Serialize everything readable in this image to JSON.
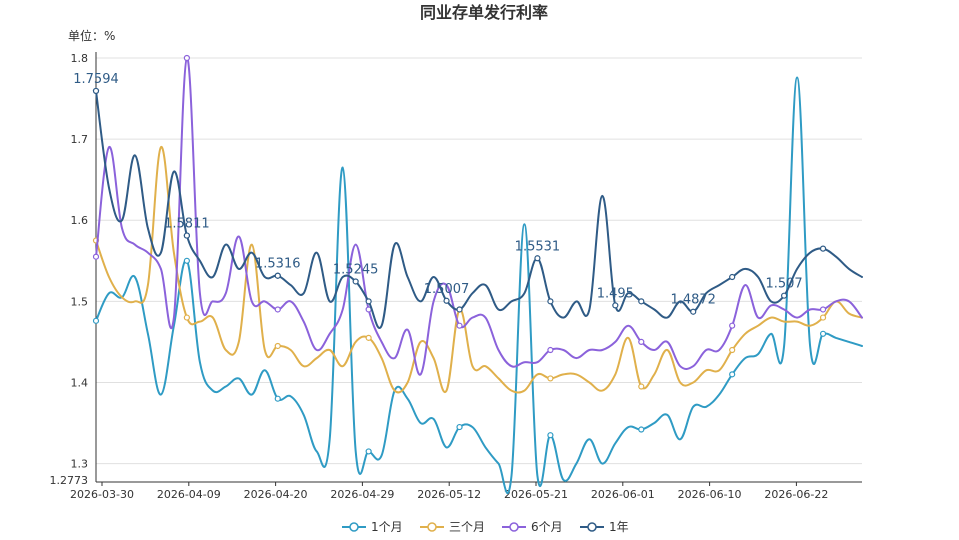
{
  "chart_data": {
    "type": "line",
    "title": "同业存单发行利率",
    "unit_label": "单位：%",
    "y_ticks": [
      "1.8",
      "1.7",
      "1.6",
      "1.5",
      "1.4",
      "1.3"
    ],
    "y_min_label": "1.2773",
    "ylim": [
      1.2773,
      1.8
    ],
    "x_ticks": [
      "2026-03-30",
      "2026-04-09",
      "2026-04-20",
      "2026-04-29",
      "2026-05-12",
      "2026-05-21",
      "2026-06-01",
      "2026-06-10",
      "2026-06-22"
    ],
    "grid": true,
    "legend_position": "bottom",
    "series": [
      {
        "name": "1个月",
        "color": "#2f9bc4",
        "values": [
          1.476,
          1.51,
          1.505,
          1.53,
          1.46,
          1.385,
          1.47,
          1.55,
          1.425,
          1.39,
          1.395,
          1.405,
          1.385,
          1.415,
          1.38,
          1.383,
          1.36,
          1.315,
          1.33,
          1.665,
          1.315,
          1.315,
          1.31,
          1.39,
          1.38,
          1.35,
          1.355,
          1.32,
          1.345,
          1.345,
          1.32,
          1.3,
          1.285,
          1.595,
          1.285,
          1.335,
          1.28,
          1.3,
          1.33,
          1.3,
          1.325,
          1.345,
          1.342,
          1.35,
          1.36,
          1.33,
          1.37,
          1.37,
          1.385,
          1.41,
          1.43,
          1.435,
          1.46,
          1.445,
          1.776,
          1.445,
          1.46,
          1.455,
          1.45,
          1.445
        ],
        "markers": [
          0,
          7,
          26,
          47,
          96,
          131,
          160,
          200,
          238,
          270
        ]
      },
      {
        "name": "三个月",
        "color": "#e0b04b",
        "values": [
          1.575,
          1.53,
          1.505,
          1.5,
          1.52,
          1.69,
          1.56,
          1.48,
          1.475,
          1.48,
          1.44,
          1.45,
          1.57,
          1.44,
          1.445,
          1.44,
          1.42,
          1.43,
          1.44,
          1.42,
          1.45,
          1.455,
          1.43,
          1.39,
          1.4,
          1.45,
          1.43,
          1.39,
          1.49,
          1.42,
          1.42,
          1.405,
          1.39,
          1.39,
          1.41,
          1.405,
          1.41,
          1.41,
          1.4,
          1.39,
          1.41,
          1.455,
          1.395,
          1.41,
          1.44,
          1.4,
          1.4,
          1.415,
          1.415,
          1.44,
          1.46,
          1.47,
          1.48,
          1.475,
          1.475,
          1.47,
          1.48,
          1.5,
          1.485,
          1.48
        ],
        "markers": []
      },
      {
        "name": "6个月",
        "color": "#8b62db",
        "values": [
          1.555,
          1.69,
          1.59,
          1.57,
          1.56,
          1.54,
          1.48,
          1.8,
          1.51,
          1.5,
          1.51,
          1.58,
          1.5,
          1.5,
          1.49,
          1.5,
          1.475,
          1.44,
          1.46,
          1.49,
          1.57,
          1.49,
          1.45,
          1.43,
          1.465,
          1.41,
          1.5,
          1.52,
          1.47,
          1.48,
          1.48,
          1.44,
          1.42,
          1.425,
          1.425,
          1.44,
          1.44,
          1.43,
          1.44,
          1.44,
          1.45,
          1.47,
          1.45,
          1.44,
          1.45,
          1.42,
          1.42,
          1.44,
          1.44,
          1.47,
          1.52,
          1.48,
          1.495,
          1.49,
          1.48,
          1.49,
          1.49,
          1.5,
          1.5,
          1.48
        ],
        "markers": []
      },
      {
        "name": "1年",
        "color": "#2f5b86",
        "values": [
          1.7594,
          1.64,
          1.6,
          1.68,
          1.59,
          1.56,
          1.66,
          1.5811,
          1.55,
          1.53,
          1.57,
          1.54,
          1.56,
          1.53,
          1.5316,
          1.52,
          1.51,
          1.56,
          1.5,
          1.53,
          1.5245,
          1.5,
          1.47,
          1.57,
          1.53,
          1.5,
          1.53,
          1.5007,
          1.49,
          1.51,
          1.52,
          1.49,
          1.5,
          1.51,
          1.5531,
          1.5,
          1.48,
          1.5,
          1.49,
          1.63,
          1.495,
          1.51,
          1.5,
          1.49,
          1.48,
          1.5,
          1.4872,
          1.51,
          1.52,
          1.53,
          1.54,
          1.53,
          1.5,
          1.507,
          1.54,
          1.56,
          1.565,
          1.555,
          1.54,
          1.53
        ],
        "labels": [
          {
            "index": 0,
            "text": "1.7594"
          },
          {
            "index": 7,
            "text": "1.5811"
          },
          {
            "index": 14,
            "text": "1.5316"
          },
          {
            "index": 20,
            "text": "1.5245"
          },
          {
            "index": 27,
            "text": "1.5007"
          },
          {
            "index": 34,
            "text": "1.5531"
          },
          {
            "index": 40,
            "text": "1.495"
          },
          {
            "index": 46,
            "text": "1.4872"
          },
          {
            "index": 53,
            "text": "1.507"
          }
        ]
      }
    ]
  }
}
